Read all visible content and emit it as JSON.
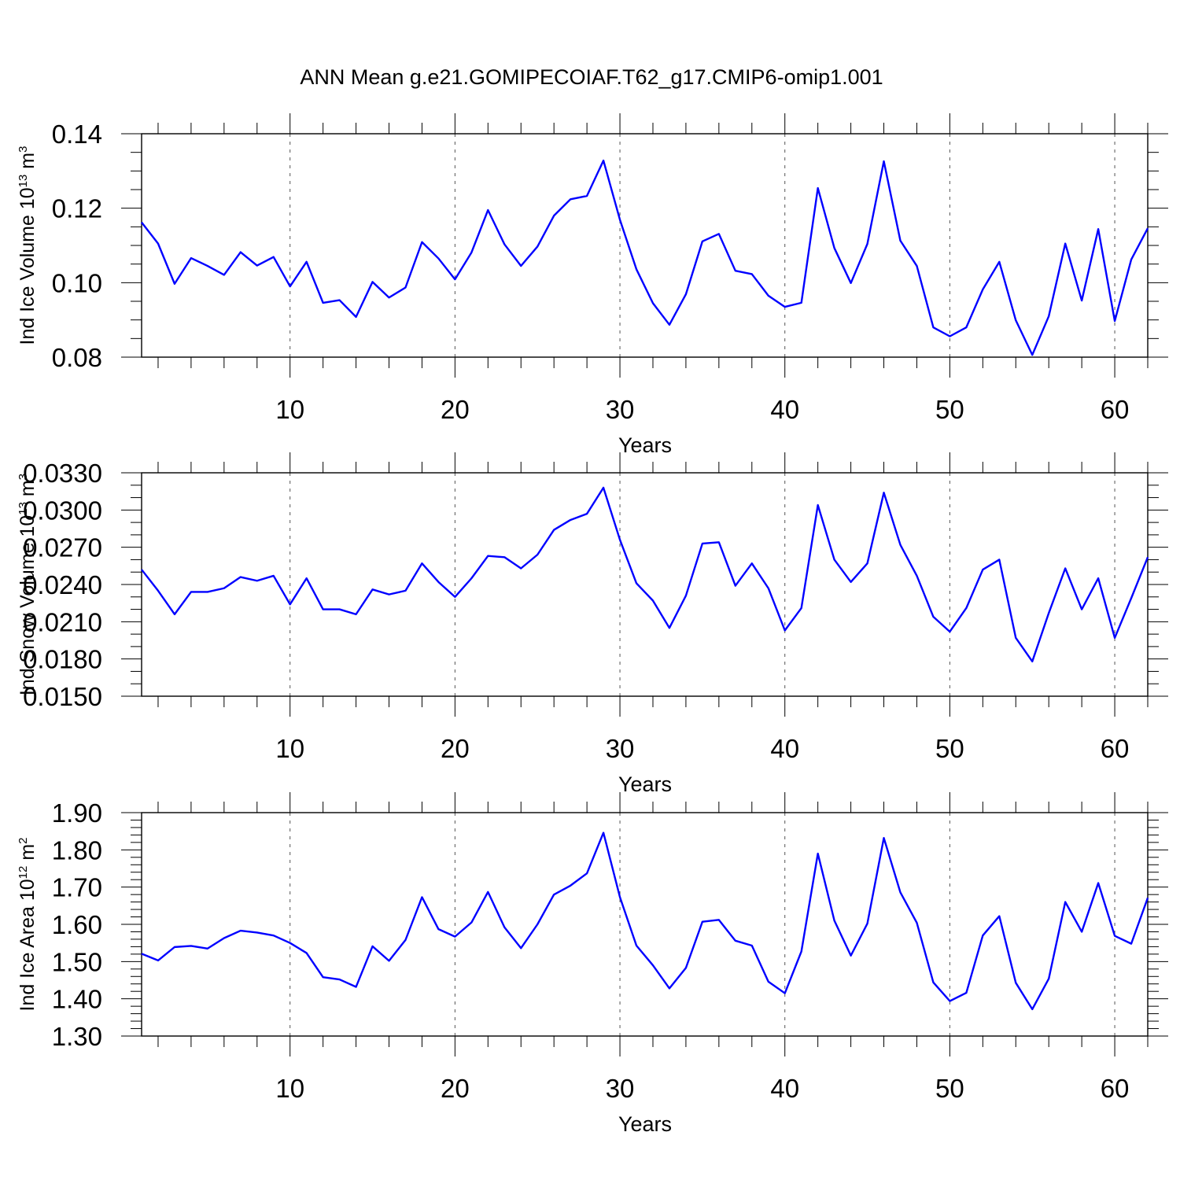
{
  "figure": {
    "title": "ANN Mean g.e21.GOMIPECOIAF.T62_g17.CMIP6-omip1.001"
  },
  "colors": {
    "line": "#0000ff",
    "axis": "#000000",
    "grid": "#555555",
    "background": "#ffffff"
  },
  "chart_data": [
    {
      "type": "line",
      "title": "ANN Mean g.e21.GOMIPECOIAF.T62_g17.CMIP6-omip1.001",
      "xlabel": "Years",
      "ylabel_base": "Ind Ice Volume 10",
      "ylabel_exp": "13",
      "ylabel_unit": " m",
      "ylabel_unit_exp": "3",
      "xlim": [
        1,
        62
      ],
      "ylim": [
        0.08,
        0.14
      ],
      "yticks": [
        "0.08",
        "0.10",
        "0.12",
        "0.14"
      ],
      "ytick_values": [
        0.08,
        0.1,
        0.12,
        0.14
      ],
      "yminor_step": 0.005,
      "xticks": [
        "10",
        "20",
        "30",
        "40",
        "50",
        "60"
      ],
      "xtick_values": [
        10,
        20,
        30,
        40,
        50,
        60
      ],
      "series": [
        {
          "name": "Ind Ice Volume",
          "values": [
            0.1162,
            0.1105,
            0.0997,
            0.1066,
            0.1045,
            0.1021,
            0.1082,
            0.1046,
            0.1069,
            0.099,
            0.1056,
            0.0946,
            0.0953,
            0.0908,
            0.1002,
            0.096,
            0.0987,
            0.1109,
            0.1065,
            0.1009,
            0.1081,
            0.1195,
            0.1103,
            0.1045,
            0.1097,
            0.118,
            0.1224,
            0.1233,
            0.1328,
            0.1169,
            0.1036,
            0.0945,
            0.0887,
            0.0969,
            0.1111,
            0.1131,
            0.1032,
            0.1023,
            0.0965,
            0.0935,
            0.0946,
            0.1254,
            0.1093,
            0.0999,
            0.1104,
            0.1326,
            0.1113,
            0.1045,
            0.088,
            0.0856,
            0.088,
            0.0982,
            0.1056,
            0.0899,
            0.0806,
            0.091,
            0.1105,
            0.0952,
            0.1144,
            0.0897,
            0.1062,
            0.1146
          ]
        }
      ]
    },
    {
      "type": "line",
      "xlabel": "Years",
      "ylabel_base": "Ind Snow Volume 10",
      "ylabel_exp": "13",
      "ylabel_unit": " m",
      "ylabel_unit_exp": "3",
      "xlim": [
        1,
        62
      ],
      "ylim": [
        0.015,
        0.033
      ],
      "yticks": [
        "0.0150",
        "0.0180",
        "0.0210",
        "0.0240",
        "0.0270",
        "0.0300",
        "0.0330"
      ],
      "ytick_values": [
        0.015,
        0.018,
        0.021,
        0.024,
        0.027,
        0.03,
        0.033
      ],
      "yminor_step": 0.001,
      "xticks": [
        "10",
        "20",
        "30",
        "40",
        "50",
        "60"
      ],
      "xtick_values": [
        10,
        20,
        30,
        40,
        50,
        60
      ],
      "series": [
        {
          "name": "Ind Snow Volume",
          "values": [
            0.0252,
            0.0235,
            0.0216,
            0.0234,
            0.0234,
            0.0237,
            0.0246,
            0.0243,
            0.0247,
            0.0224,
            0.0245,
            0.022,
            0.022,
            0.0216,
            0.0236,
            0.0232,
            0.0235,
            0.0257,
            0.0242,
            0.023,
            0.0245,
            0.0263,
            0.0262,
            0.0253,
            0.0264,
            0.0284,
            0.0292,
            0.0297,
            0.0318,
            0.0276,
            0.0241,
            0.0227,
            0.0205,
            0.0231,
            0.0273,
            0.0274,
            0.0239,
            0.0257,
            0.0237,
            0.0203,
            0.0221,
            0.0304,
            0.026,
            0.0242,
            0.0257,
            0.0314,
            0.0272,
            0.0247,
            0.0214,
            0.0202,
            0.0221,
            0.0252,
            0.026,
            0.0197,
            0.0178,
            0.0217,
            0.0253,
            0.022,
            0.0245,
            0.0197,
            0.0229,
            0.0262
          ]
        }
      ]
    },
    {
      "type": "line",
      "xlabel": "Years",
      "ylabel_base": "Ind Ice Area 10",
      "ylabel_exp": "12",
      "ylabel_unit": " m",
      "ylabel_unit_exp": "2",
      "xlim": [
        1,
        62
      ],
      "ylim": [
        1.3,
        1.9
      ],
      "yticks": [
        "1.30",
        "1.40",
        "1.50",
        "1.60",
        "1.70",
        "1.80",
        "1.90"
      ],
      "ytick_values": [
        1.3,
        1.4,
        1.5,
        1.6,
        1.7,
        1.8,
        1.9
      ],
      "yminor_step": 0.02,
      "xticks": [
        "10",
        "20",
        "30",
        "40",
        "50",
        "60"
      ],
      "xtick_values": [
        10,
        20,
        30,
        40,
        50,
        60
      ],
      "series": [
        {
          "name": "Ind Ice Area",
          "values": [
            1.521,
            1.503,
            1.539,
            1.542,
            1.535,
            1.563,
            1.583,
            1.578,
            1.57,
            1.55,
            1.523,
            1.458,
            1.452,
            1.432,
            1.541,
            1.502,
            1.558,
            1.673,
            1.587,
            1.567,
            1.605,
            1.687,
            1.592,
            1.536,
            1.6,
            1.68,
            1.704,
            1.737,
            1.846,
            1.673,
            1.543,
            1.49,
            1.428,
            1.483,
            1.607,
            1.612,
            1.556,
            1.543,
            1.446,
            1.415,
            1.527,
            1.79,
            1.61,
            1.516,
            1.602,
            1.832,
            1.686,
            1.604,
            1.444,
            1.394,
            1.416,
            1.57,
            1.622,
            1.443,
            1.372,
            1.454,
            1.66,
            1.58,
            1.711,
            1.569,
            1.548,
            1.671
          ]
        }
      ]
    }
  ]
}
